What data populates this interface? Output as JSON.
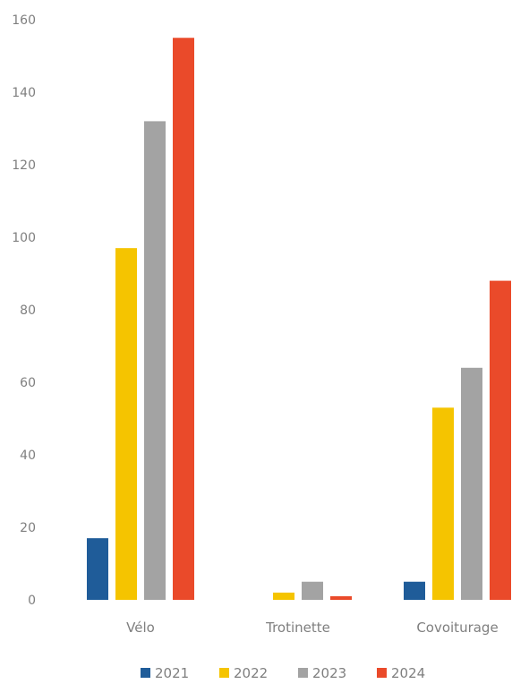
{
  "chart_data": {
    "type": "bar",
    "categories": [
      "Vélo",
      "Trotinette",
      "Covoiturage"
    ],
    "series": [
      {
        "name": "2021",
        "color": "#1f5c99",
        "values": [
          17,
          0,
          5
        ]
      },
      {
        "name": "2022",
        "color": "#f5c400",
        "values": [
          97,
          2,
          53
        ]
      },
      {
        "name": "2023",
        "color": "#a3a3a3",
        "values": [
          132,
          5,
          64
        ]
      },
      {
        "name": "2024",
        "color": "#ea4a2a",
        "values": [
          155,
          1,
          88
        ]
      }
    ],
    "ylim": [
      0,
      160
    ],
    "yticks": [
      0,
      20,
      40,
      60,
      80,
      100,
      120,
      140,
      160
    ],
    "grid": false,
    "legend": "bottom"
  }
}
